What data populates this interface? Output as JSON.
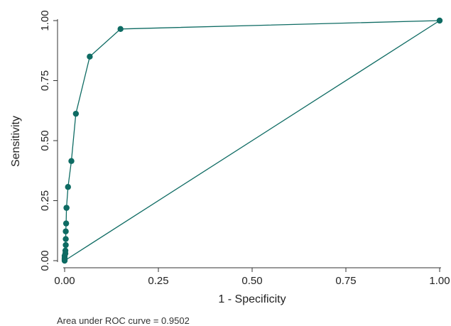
{
  "chart_data": {
    "type": "line",
    "title": "",
    "xlabel": "1 - Specificity",
    "ylabel": "Sensitivity",
    "xlim": [
      0,
      1
    ],
    "ylim": [
      0,
      1
    ],
    "x_ticks": [
      0.0,
      0.25,
      0.5,
      0.75,
      1.0
    ],
    "x_tick_labels": [
      "0.00",
      "0.25",
      "0.50",
      "0.75",
      "1.00"
    ],
    "y_ticks": [
      0.0,
      0.25,
      0.5,
      0.75,
      1.0
    ],
    "y_tick_labels": [
      "0.00",
      "0.25",
      "0.50",
      "0.75",
      "1.00"
    ],
    "grid": false,
    "series": [
      {
        "color": "#0e6b63",
        "x": [
          0.0,
          0.0,
          0.0,
          0.0,
          0.002,
          0.002,
          0.003,
          0.003,
          0.003,
          0.004,
          0.005,
          0.005,
          0.009,
          0.018,
          0.03,
          0.067,
          0.149,
          1.0
        ],
        "y": [
          0.0,
          0.005,
          0.01,
          0.02,
          0.03,
          0.042,
          0.065,
          0.09,
          0.122,
          0.155,
          0.22,
          0.22,
          0.307,
          0.415,
          0.612,
          0.85,
          0.965,
          1.0
        ]
      },
      {
        "color": "#0e6b63",
        "x": [
          0.0,
          1.0
        ],
        "y": [
          0.0,
          1.0
        ]
      }
    ],
    "annotation": "Area under ROC curve = 0.9502"
  }
}
